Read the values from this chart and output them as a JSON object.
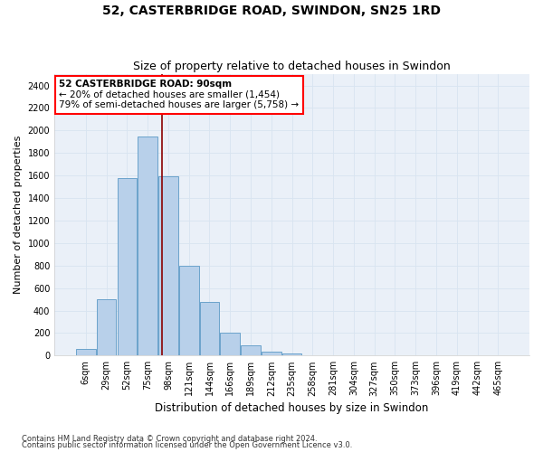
{
  "title1": "52, CASTERBRIDGE ROAD, SWINDON, SN25 1RD",
  "title2": "Size of property relative to detached houses in Swindon",
  "xlabel": "Distribution of detached houses by size in Swindon",
  "ylabel": "Number of detached properties",
  "footnote1": "Contains HM Land Registry data © Crown copyright and database right 2024.",
  "footnote2": "Contains public sector information licensed under the Open Government Licence v3.0.",
  "categories": [
    "6sqm",
    "29sqm",
    "52sqm",
    "75sqm",
    "98sqm",
    "121sqm",
    "144sqm",
    "166sqm",
    "189sqm",
    "212sqm",
    "235sqm",
    "258sqm",
    "281sqm",
    "304sqm",
    "327sqm",
    "350sqm",
    "373sqm",
    "396sqm",
    "419sqm",
    "442sqm",
    "465sqm"
  ],
  "values": [
    60,
    500,
    1580,
    1950,
    1590,
    800,
    480,
    200,
    90,
    35,
    20,
    5,
    5,
    5,
    5,
    5,
    5,
    5,
    5,
    5,
    5
  ],
  "bar_color": "#b8d0ea",
  "bar_edge_color": "#6ba3cb",
  "vline_color": "#8b0000",
  "vline_x": 3.7,
  "annotation_line1": "52 CASTERBRIDGE ROAD: 90sqm",
  "annotation_line2": "← 20% of detached houses are smaller (1,454)",
  "annotation_line3": "79% of semi-detached houses are larger (5,758) →",
  "box_edge_color": "red",
  "ylim": [
    0,
    2500
  ],
  "yticks": [
    0,
    200,
    400,
    600,
    800,
    1000,
    1200,
    1400,
    1600,
    1800,
    2000,
    2200,
    2400
  ],
  "background_color": "#eaf0f8",
  "grid_color": "#d8e4f0",
  "title1_fontsize": 10,
  "title2_fontsize": 9,
  "xlabel_fontsize": 8.5,
  "ylabel_fontsize": 8,
  "tick_fontsize": 7,
  "annotation_fontsize": 7.5,
  "footnote_fontsize": 6
}
